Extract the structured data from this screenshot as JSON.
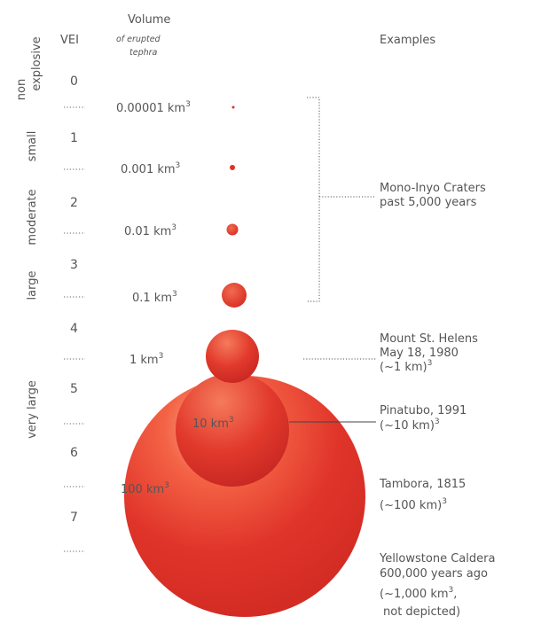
{
  "headers": {
    "vei": "VEI",
    "volume_line1": "Volume",
    "volume_line2": "of erupted",
    "volume_line3": "tephra",
    "examples": "Examples"
  },
  "categories": [
    {
      "label_line1": "non",
      "label_line2": "explosive"
    },
    {
      "label_line1": "small",
      "label_line2": ""
    },
    {
      "label_line1": "moderate",
      "label_line2": ""
    },
    {
      "label_line1": "large",
      "label_line2": ""
    },
    {
      "label_line1": "very large",
      "label_line2": ""
    }
  ],
  "vei_levels": [
    "0",
    "1",
    "2",
    "3",
    "4",
    "5",
    "6",
    "7"
  ],
  "volumes": [
    {
      "text": "0.00001 km",
      "exp": "3"
    },
    {
      "text": "0.001 km",
      "exp": "3"
    },
    {
      "text": "0.01 km",
      "exp": "3"
    },
    {
      "text": "0.1 km",
      "exp": "3"
    },
    {
      "text": "1 km",
      "exp": "3"
    },
    {
      "text": "10 km",
      "exp": "3"
    },
    {
      "text": "100 km",
      "exp": "3"
    }
  ],
  "examples": {
    "mono": {
      "line1": "Mono-Inyo Craters",
      "line2": "past 5,000 years"
    },
    "helens": {
      "line1": "Mount St. Helens",
      "line2": "May 18, 1980",
      "line3a": "(~1 km)",
      "line3exp": "3"
    },
    "pinatubo": {
      "line1": "Pinatubo, 1991",
      "line2a": "(~10 km)",
      "line2exp": "3"
    },
    "tambora": {
      "line1": "Tambora, 1815",
      "line2a": "(~100 km)",
      "line2exp": "3"
    },
    "yellowstone": {
      "line1": "Yellowstone Caldera",
      "line2": "600,000 years ago",
      "line3a": "(~1,000 km",
      "line3exp": "3",
      "line3b": ",",
      "line4": "not depicted)"
    }
  },
  "colors": {
    "sphere_light": "#f56a4a",
    "sphere_mid": "#e2372a",
    "sphere_dark": "#b51e1a",
    "text": "#555555"
  }
}
